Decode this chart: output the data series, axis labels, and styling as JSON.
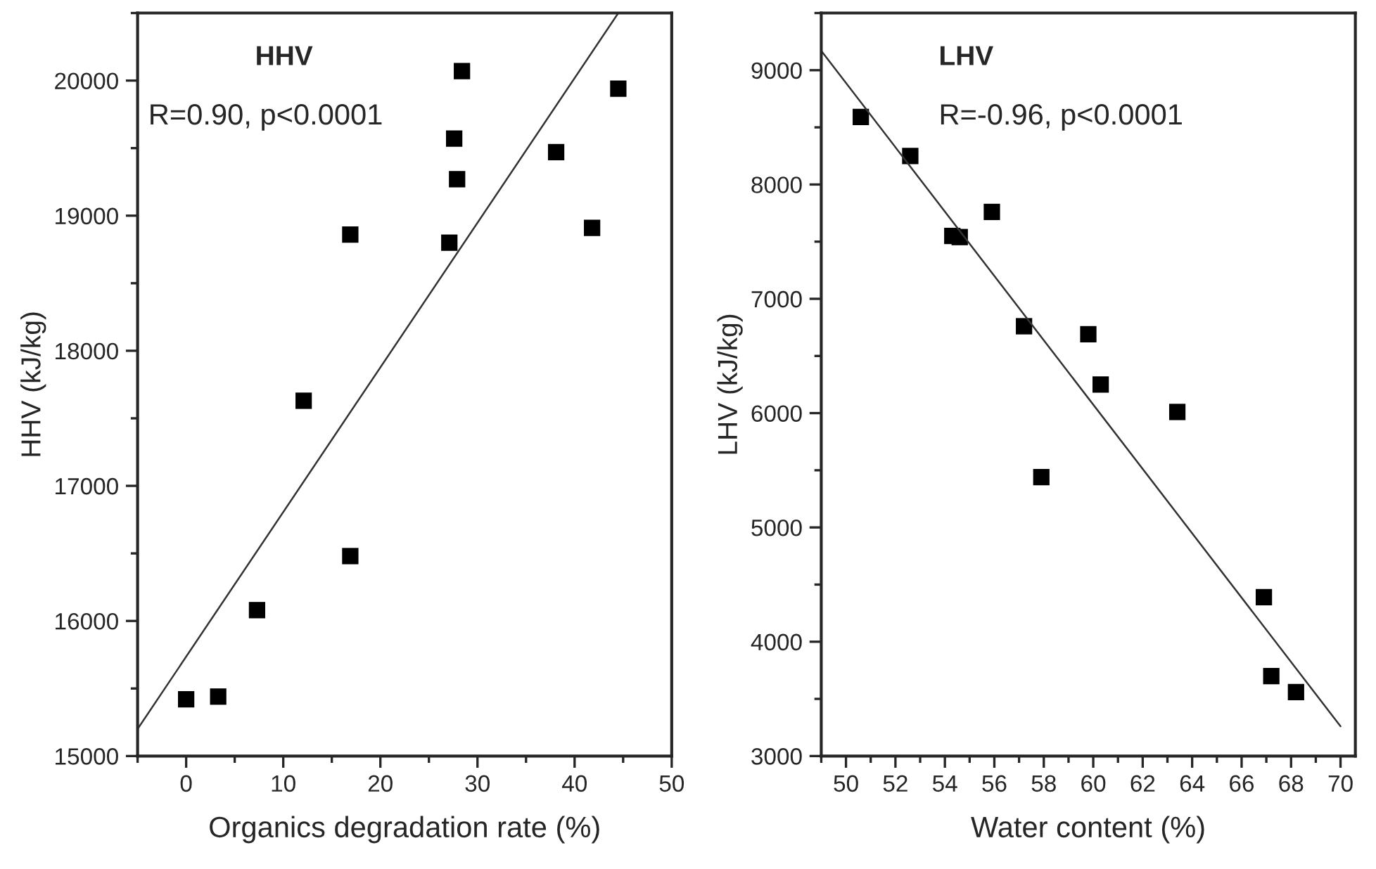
{
  "chart_data": [
    {
      "type": "scatter",
      "xlabel": "Organics degradation rate (%)",
      "ylabel": "HHV (kJ/kg)",
      "annotations": [
        "HHV",
        "R=0.90, p<0.0001"
      ],
      "grid": false,
      "legend": false,
      "xlim": [
        -5,
        50
      ],
      "xticks": [
        0,
        10,
        20,
        30,
        40,
        50
      ],
      "ylim": [
        15000,
        20500
      ],
      "yticks": [
        15000,
        16000,
        17000,
        18000,
        19000,
        20000
      ],
      "series": [
        {
          "color": "#000000",
          "marker": "square",
          "x": [
            0,
            3.3,
            7.3,
            12.1,
            16.9,
            16.9,
            27.1,
            27.6,
            27.9,
            28.4,
            38.1,
            41.8,
            44.5
          ],
          "values": [
            15420,
            15440,
            16080,
            17630,
            16480,
            18860,
            18800,
            19570,
            19270,
            20070,
            19470,
            18910,
            19940
          ]
        },
        {
          "type": "line",
          "marker": "none",
          "color": "#333333",
          "x": [
            -5,
            44.5
          ],
          "values": [
            15200,
            20500
          ]
        }
      ]
    },
    {
      "type": "scatter",
      "xlabel": "Water content (%)",
      "ylabel": "LHV (kJ/kg)",
      "annotations": [
        "LHV",
        "R=-0.96, p<0.0001"
      ],
      "grid": false,
      "legend": false,
      "xlim": [
        49,
        70.6
      ],
      "xticks": [
        50,
        52,
        54,
        56,
        58,
        60,
        62,
        64,
        66,
        68,
        70
      ],
      "ylim": [
        3000,
        9500
      ],
      "yticks": [
        3000,
        4000,
        5000,
        6000,
        7000,
        8000,
        9000
      ],
      "series": [
        {
          "color": "#000000",
          "marker": "square",
          "x": [
            50.6,
            52.6,
            54.3,
            54.6,
            55.9,
            57.2,
            57.9,
            59.8,
            60.3,
            63.4,
            66.9,
            67.2,
            68.2
          ],
          "values": [
            8590,
            8250,
            7550,
            7540,
            7760,
            6760,
            5440,
            6690,
            6250,
            6010,
            4390,
            3700,
            3560
          ]
        },
        {
          "type": "line",
          "marker": "none",
          "color": "#333333",
          "x": [
            49,
            70
          ],
          "values": [
            9170,
            3260
          ]
        }
      ]
    }
  ]
}
